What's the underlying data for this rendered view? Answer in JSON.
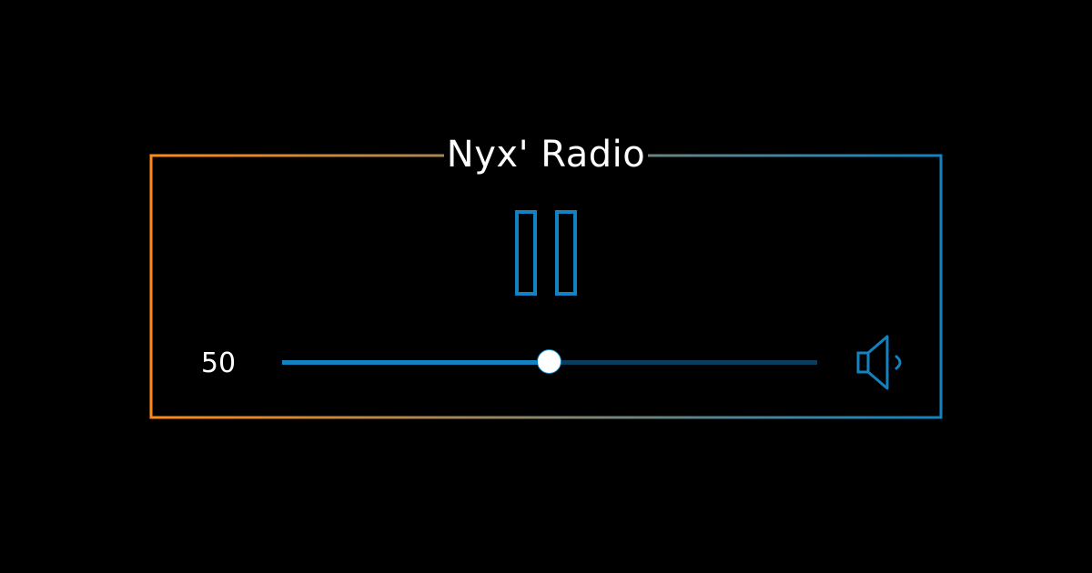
{
  "player": {
    "title": "Nyx' Radio",
    "state": "playing",
    "control_icon": "pause-icon",
    "volume": {
      "value": 50,
      "label": "50",
      "min": 0,
      "max": 100
    },
    "speaker_icon": "speaker-low-volume-icon"
  },
  "colors": {
    "background": "#000000",
    "accent": "#1282c1",
    "track_empty": "#0a3e5f",
    "border_gradient_start": "#ff8a14",
    "border_gradient_end": "#1282c1",
    "text": "#ffffff"
  }
}
